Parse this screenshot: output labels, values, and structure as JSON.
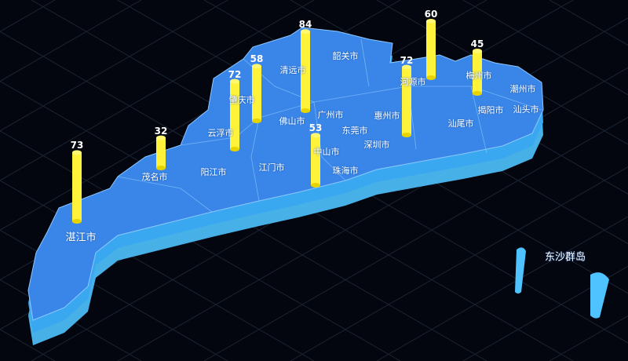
{
  "map": {
    "region": "Guangdong",
    "colors": {
      "surface": "#3a86e8",
      "side": "#4fc3ff",
      "border": "#8cc8ff",
      "bar": "#fff23a",
      "background": "#03060f"
    },
    "labels": [
      "韶关市",
      "清远市",
      "肇庆市",
      "云浮市",
      "佛山市",
      "广州市",
      "东莞市",
      "深圳市",
      "惠州市",
      "河源市",
      "梅州市",
      "潮州市",
      "揭阳市",
      "汕头市",
      "汕尾市",
      "中山市",
      "珠海市",
      "江门市",
      "阳江市",
      "茂名市",
      "湛江市",
      "东沙群岛"
    ],
    "bars": [
      {
        "city": "湛江市",
        "value": 73
      },
      {
        "city": "茂名市",
        "value": 32
      },
      {
        "city": "云浮市",
        "value": 72
      },
      {
        "city": "肇庆市",
        "value": 58
      },
      {
        "city": "清远市",
        "value": 84
      },
      {
        "city": "中山市",
        "value": 53
      },
      {
        "city": "惠州市",
        "value": 72
      },
      {
        "city": "河源市",
        "value": 60
      },
      {
        "city": "梅州市",
        "value": 45
      }
    ]
  }
}
